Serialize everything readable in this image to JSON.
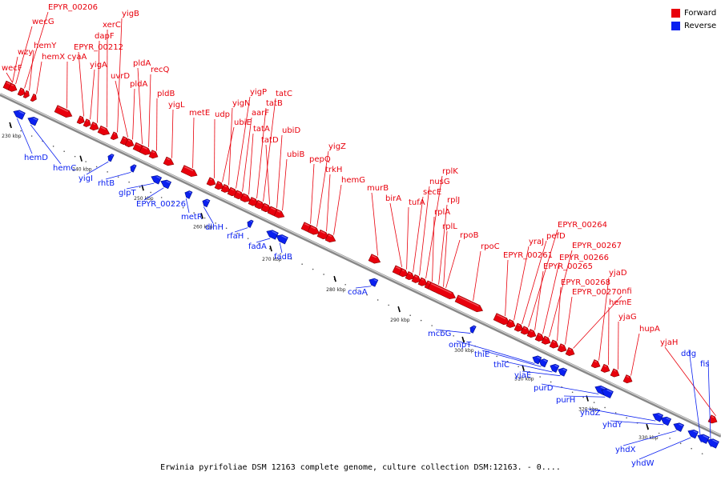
{
  "caption": "Erwinia pyrifoliae DSM 12163 complete genome, culture collection DSM:12163. - 0....",
  "legend": {
    "forward_label": "Forward",
    "reverse_label": "Reverse",
    "forward_color": "#e8000c",
    "reverse_color": "#0a20f0"
  },
  "ticks": [
    "230 kbp",
    "240 kbp",
    "250 kbp",
    "260 kbp",
    "270 kbp",
    "280 kbp",
    "290 kbp",
    "300 kbp",
    "310 kbp",
    "320 kbp",
    "330 kbp"
  ],
  "forward_genes": [
    "wecF",
    "wzy",
    "wecG",
    "EPYR_00206",
    "hemY",
    "hemX",
    "cyaA",
    "EPYR_00212",
    "yigA",
    "dapF",
    "xerC",
    "yigB",
    "uvrD",
    "pldA",
    "pldA",
    "recQ",
    "pldB",
    "yigL",
    "metE",
    "udp",
    "ubiE",
    "yigN",
    "yigP",
    "aarF",
    "tatA",
    "tatB",
    "tatC",
    "tatD",
    "ubiD",
    "ubiB",
    "pepQ",
    "yigZ",
    "trkH",
    "hemG",
    "murB",
    "birA",
    "tufA",
    "secE",
    "nusG",
    "rplK",
    "rplA",
    "rplJ",
    "rplL",
    "rpoB",
    "rpoC",
    "EPYR_00261",
    "yraJ",
    "pefD",
    "EPYR_00264",
    "EPYR_00265",
    "EPYR_00266",
    "EPYR_00267",
    "EPYR_00268",
    "EPYR_00270",
    "nfi",
    "yjaD",
    "hemE",
    "yjaG",
    "hupA",
    "yjaH"
  ],
  "reverse_genes": [
    "hemD",
    "hemC",
    "yigI",
    "rhtB",
    "glpT",
    "EPYR_00226",
    "metR",
    "dlhH",
    "rfaH",
    "fadA",
    "fadB",
    "coaA",
    "mcbG",
    "ompT",
    "thiE",
    "thiC",
    "yjaE",
    "purD",
    "purH",
    "yhdZ",
    "yhdY",
    "yhdX",
    "yhdW",
    "ddg",
    "fis"
  ]
}
